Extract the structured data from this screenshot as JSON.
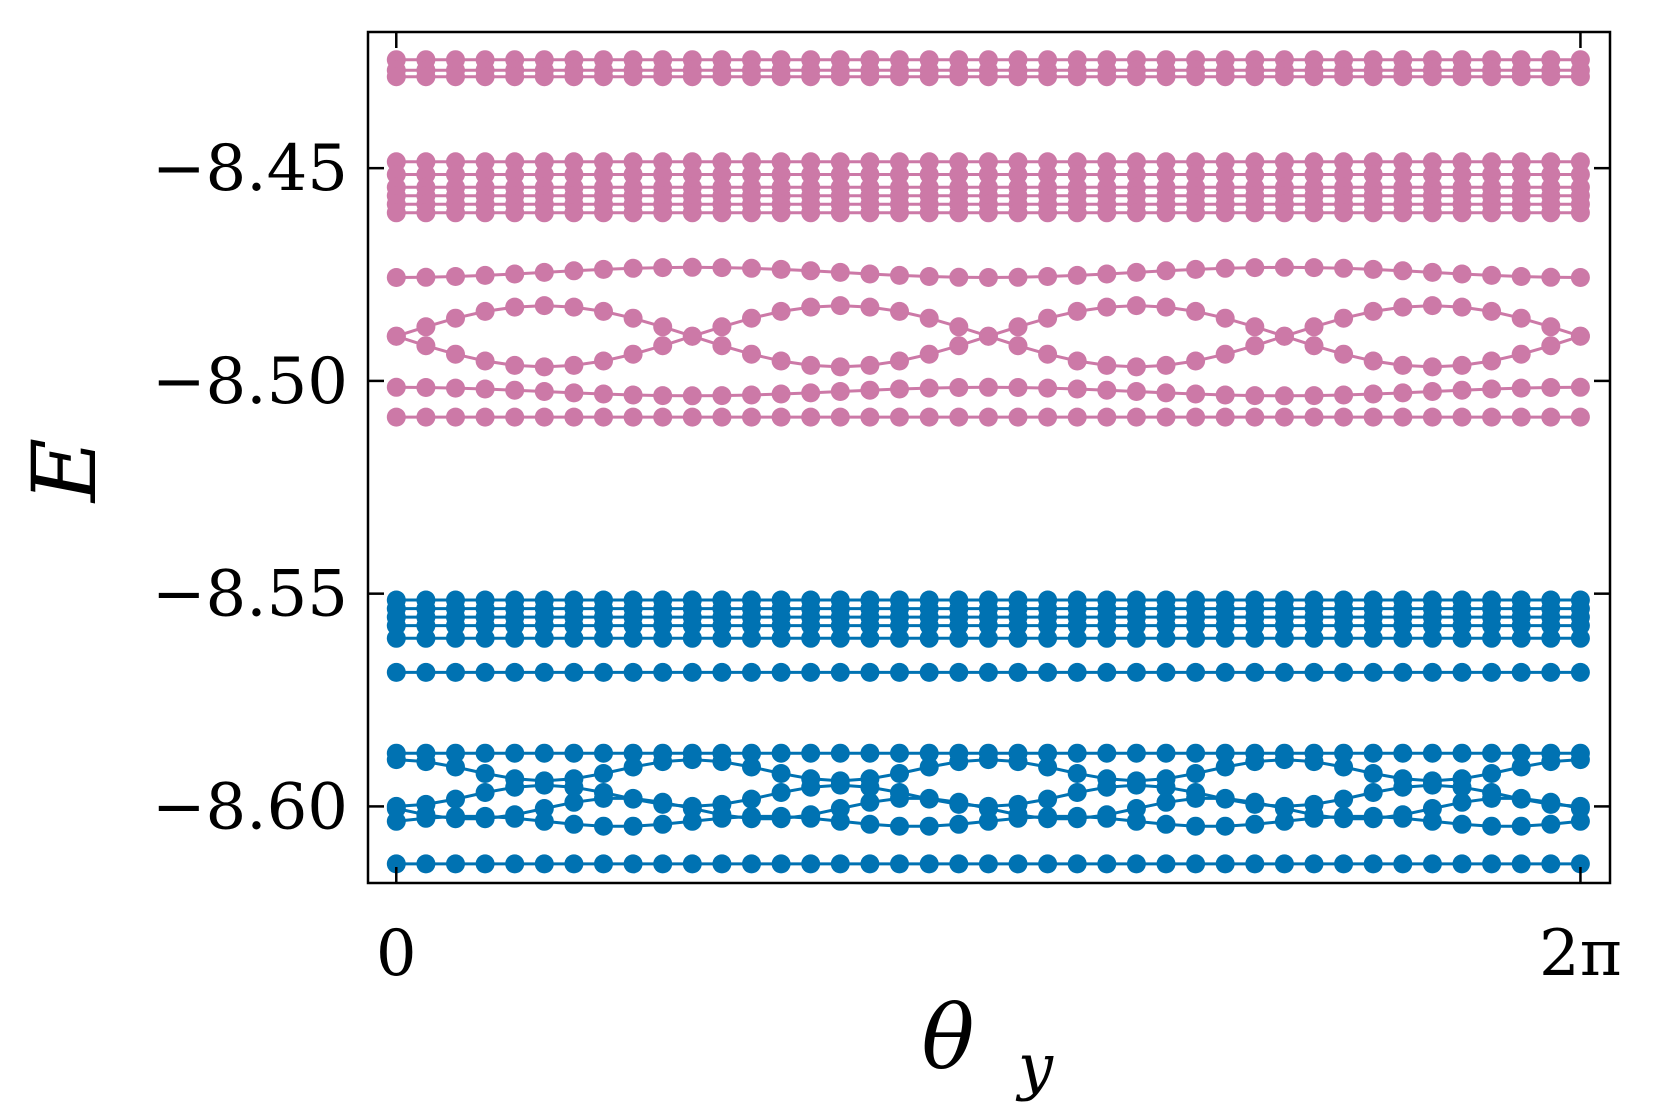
{
  "chart_data": {
    "type": "line",
    "xlabel": "θ",
    "xlabel_subscript": "y",
    "ylabel": "E",
    "xlim": [
      -0.15,
      6.44
    ],
    "ylim": [
      -8.618,
      -8.418
    ],
    "xticks": [
      {
        "value": 0,
        "label": "0"
      },
      {
        "value": 6.2832,
        "label": "2π"
      }
    ],
    "yticks": [
      {
        "value": -8.45,
        "label": "−8.45"
      },
      {
        "value": -8.5,
        "label": "−8.50"
      },
      {
        "value": -8.55,
        "label": "−8.55"
      },
      {
        "value": -8.6,
        "label": "−8.60"
      }
    ],
    "grid": false,
    "legend": false,
    "n_points": 41,
    "x_range": [
      0,
      6.2832
    ],
    "groups": [
      {
        "color": "#cc79a7",
        "levels": [
          {
            "kind": "flat",
            "y": -8.4245
          },
          {
            "kind": "flat",
            "y": -8.427
          },
          {
            "kind": "flat",
            "y": -8.4285
          },
          {
            "kind": "flat",
            "y": -8.4485
          },
          {
            "kind": "flat",
            "y": -8.4515
          },
          {
            "kind": "flat",
            "y": -8.4545
          },
          {
            "kind": "flat",
            "y": -8.4565
          },
          {
            "kind": "flat",
            "y": -8.4585
          },
          {
            "kind": "flat",
            "y": -8.4605
          },
          {
            "kind": "wave",
            "mean": -8.4745,
            "amp": 0.0012,
            "periods": 4,
            "phase": 3.14159
          },
          {
            "kind": "wave",
            "mean": -8.4895,
            "amp": 0.0072,
            "periods": 4,
            "phase": 1.5708
          },
          {
            "kind": "wave",
            "mean": -8.4895,
            "amp": 0.0072,
            "periods": 4,
            "phase": -1.5708
          },
          {
            "kind": "wave",
            "mean": -8.5025,
            "amp": 0.001,
            "periods": 4,
            "phase": 0
          },
          {
            "kind": "flat",
            "y": -8.5085
          }
        ]
      },
      {
        "color": "#0072b2",
        "levels": [
          {
            "kind": "flat",
            "y": -8.5515
          },
          {
            "kind": "flat",
            "y": -8.5535
          },
          {
            "kind": "flat",
            "y": -8.5555
          },
          {
            "kind": "flat",
            "y": -8.5575
          },
          {
            "kind": "flat",
            "y": -8.5605
          },
          {
            "kind": "flat",
            "y": -8.5685
          },
          {
            "kind": "flat",
            "y": -8.5875
          },
          {
            "kind": "wave",
            "mean": -8.5915,
            "amp": 0.0025,
            "periods": 8,
            "phase": 0
          },
          {
            "kind": "wave",
            "mean": -8.5975,
            "amp": 0.0025,
            "periods": 8,
            "phase": 3.14159
          },
          {
            "kind": "wave",
            "mean": -8.6005,
            "amp": 0.0025,
            "periods": 8,
            "phase": 1.5708
          },
          {
            "kind": "wave",
            "mean": -8.6035,
            "amp": 0.0012,
            "periods": 8,
            "phase": -1.5708
          },
          {
            "kind": "flat",
            "y": -8.6135
          }
        ]
      }
    ]
  }
}
